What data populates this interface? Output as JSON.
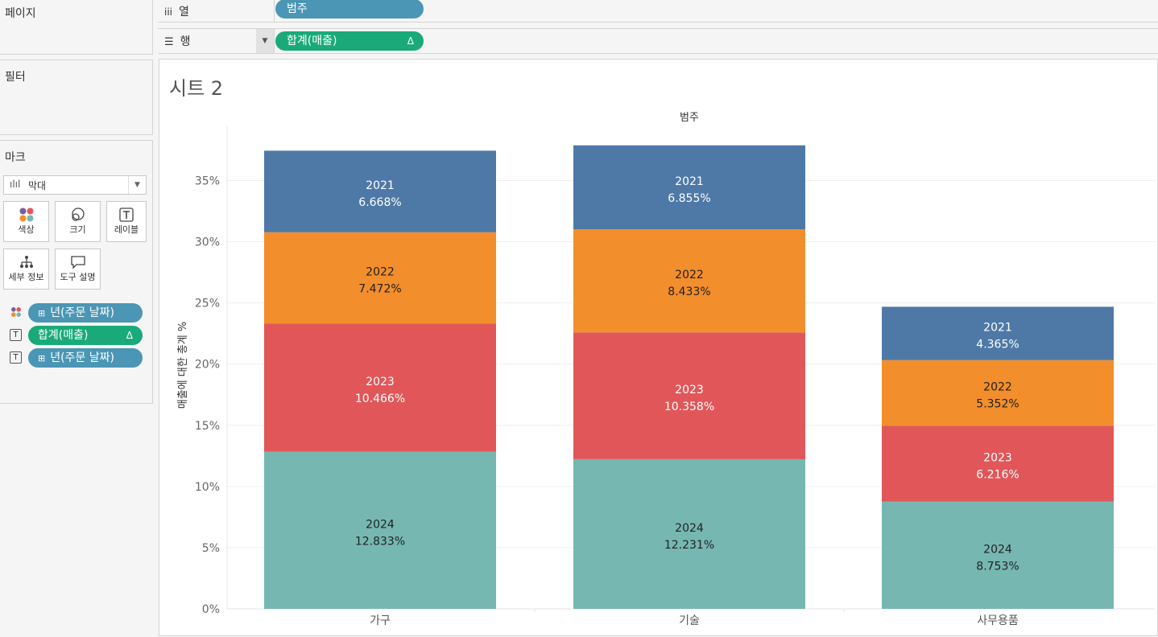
{
  "shelves": {
    "columns": {
      "label": "열",
      "pill": "범주"
    },
    "rows": {
      "label": "행",
      "pill": "합계(매출)",
      "pill_delta": "Δ"
    }
  },
  "cards": {
    "pages": {
      "title": "페이지"
    },
    "filters": {
      "title": "필터"
    },
    "marks": {
      "title": "마크",
      "mark_type": "막대",
      "buttons": {
        "color": "색상",
        "size": "크기",
        "label": "레이블",
        "detail": "세부 정보",
        "tooltip": "도구 설명"
      },
      "encodings": [
        {
          "type": "color",
          "pill": "년(주문 날짜)",
          "pill_color": "blue"
        },
        {
          "type": "label",
          "pill": "합계(매출)",
          "pill_color": "green",
          "delta": "Δ"
        },
        {
          "type": "label",
          "pill": "년(주문 날짜)",
          "pill_color": "blue"
        }
      ]
    }
  },
  "sheet": {
    "title": "시트 2"
  },
  "colors": {
    "2021": "#4e79a7",
    "2022": "#f28e2b",
    "2023": "#e15759",
    "2024": "#76b7b2",
    "pill_blue": "#4b96b4",
    "pill_green": "#1aaa79"
  },
  "chart_data": {
    "type": "bar",
    "stacked": true,
    "title": "범주",
    "xlabel": "",
    "ylabel": "매출에 대한 총계 %",
    "categories": [
      "가구",
      "기술",
      "사무용품"
    ],
    "series": [
      {
        "name": "2024",
        "values": [
          12.833,
          12.231,
          8.753
        ],
        "labels": [
          "12.833%",
          "12.231%",
          "8.753%"
        ]
      },
      {
        "name": "2023",
        "values": [
          10.466,
          10.358,
          6.216
        ],
        "labels": [
          "10.466%",
          "10.358%",
          "6.216%"
        ]
      },
      {
        "name": "2022",
        "values": [
          7.472,
          8.433,
          5.352
        ],
        "labels": [
          "7.472%",
          "8.433%",
          "5.352%"
        ]
      },
      {
        "name": "2021",
        "values": [
          6.668,
          6.855,
          4.365
        ],
        "labels": [
          "6.668%",
          "6.855%",
          "4.365%"
        ]
      }
    ],
    "yticks": [
      0,
      5,
      10,
      15,
      20,
      25,
      30,
      35
    ],
    "ytick_labels": [
      "0%",
      "5%",
      "10%",
      "15%",
      "20%",
      "25%",
      "30%",
      "35%"
    ],
    "ylim": [
      0,
      39.5
    ],
    "grid": true
  }
}
